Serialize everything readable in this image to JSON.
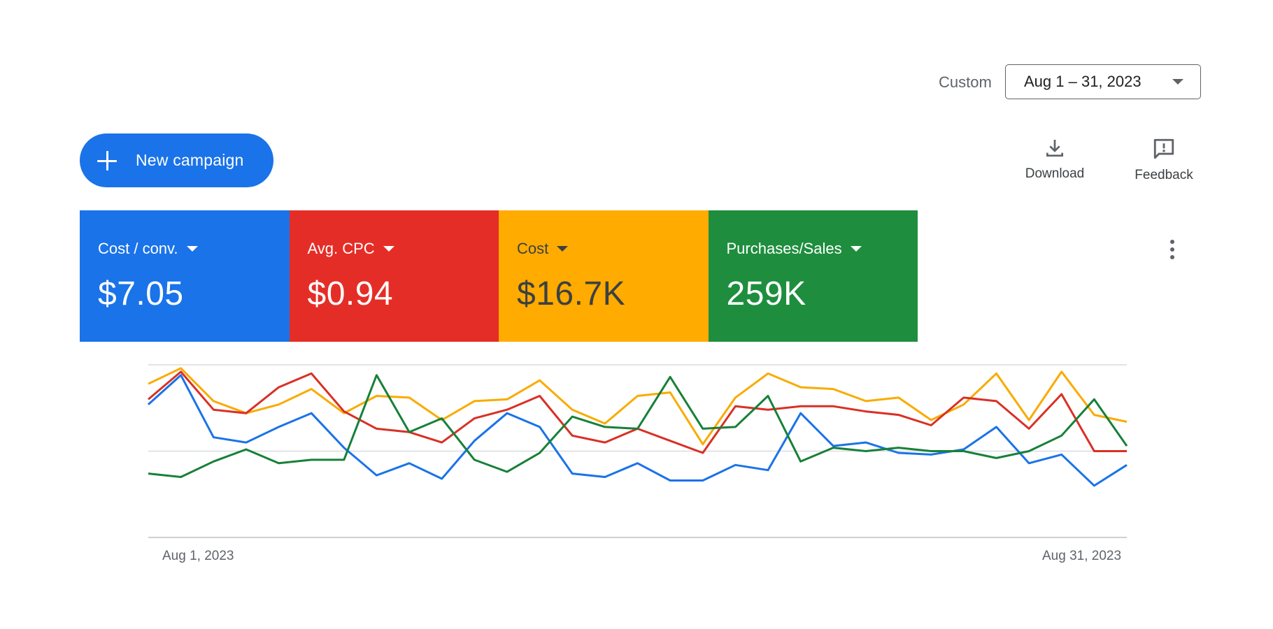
{
  "date_range": {
    "label": "Custom",
    "value": "Aug 1 – 31, 2023"
  },
  "actions": {
    "new_campaign": "New campaign",
    "download": "Download",
    "feedback": "Feedback"
  },
  "metrics": [
    {
      "label": "Cost / conv.",
      "value": "$7.05",
      "color": "#1a73e8",
      "text_color": "#ffffff"
    },
    {
      "label": "Avg. CPC",
      "value": "$0.94",
      "color": "#e52d27",
      "text_color": "#ffffff"
    },
    {
      "label": "Cost",
      "value": "$16.7K",
      "color": "#ffab00",
      "text_color": "#3c4043"
    },
    {
      "label": "Purchases/Sales",
      "value": "259K",
      "color": "#1e8e3e",
      "text_color": "#ffffff"
    }
  ],
  "chart_data": {
    "type": "line",
    "x_start_label": "Aug 1, 2023",
    "x_end_label": "Aug 31, 2023",
    "ylim": [
      0,
      100
    ],
    "grid": true,
    "series": [
      {
        "color": "#f9ab00",
        "values": [
          89,
          98,
          79,
          72,
          77,
          86,
          72,
          82,
          81,
          68,
          79,
          80,
          91,
          74,
          66,
          82,
          84,
          54,
          81,
          95,
          87,
          86,
          79,
          81,
          68,
          77,
          95,
          68,
          96,
          71,
          67
        ]
      },
      {
        "color": "#d93025",
        "values": [
          80,
          96,
          74,
          72,
          87,
          95,
          73,
          63,
          61,
          55,
          69,
          74,
          82,
          59,
          55,
          63,
          56,
          49,
          76,
          74,
          76,
          76,
          73,
          71,
          65,
          81,
          79,
          63,
          83,
          50,
          50
        ]
      },
      {
        "color": "#1a73e8",
        "values": [
          77,
          94,
          58,
          55,
          64,
          72,
          52,
          36,
          43,
          34,
          56,
          72,
          64,
          37,
          35,
          43,
          33,
          33,
          42,
          39,
          72,
          53,
          55,
          49,
          48,
          51,
          64,
          43,
          48,
          30,
          42
        ]
      },
      {
        "color": "#188038",
        "values": [
          37,
          35,
          44,
          51,
          43,
          45,
          45,
          94,
          61,
          69,
          45,
          38,
          49,
          70,
          64,
          63,
          93,
          63,
          64,
          82,
          44,
          52,
          50,
          52,
          50,
          50,
          46,
          50,
          59,
          80,
          53
        ]
      }
    ]
  }
}
